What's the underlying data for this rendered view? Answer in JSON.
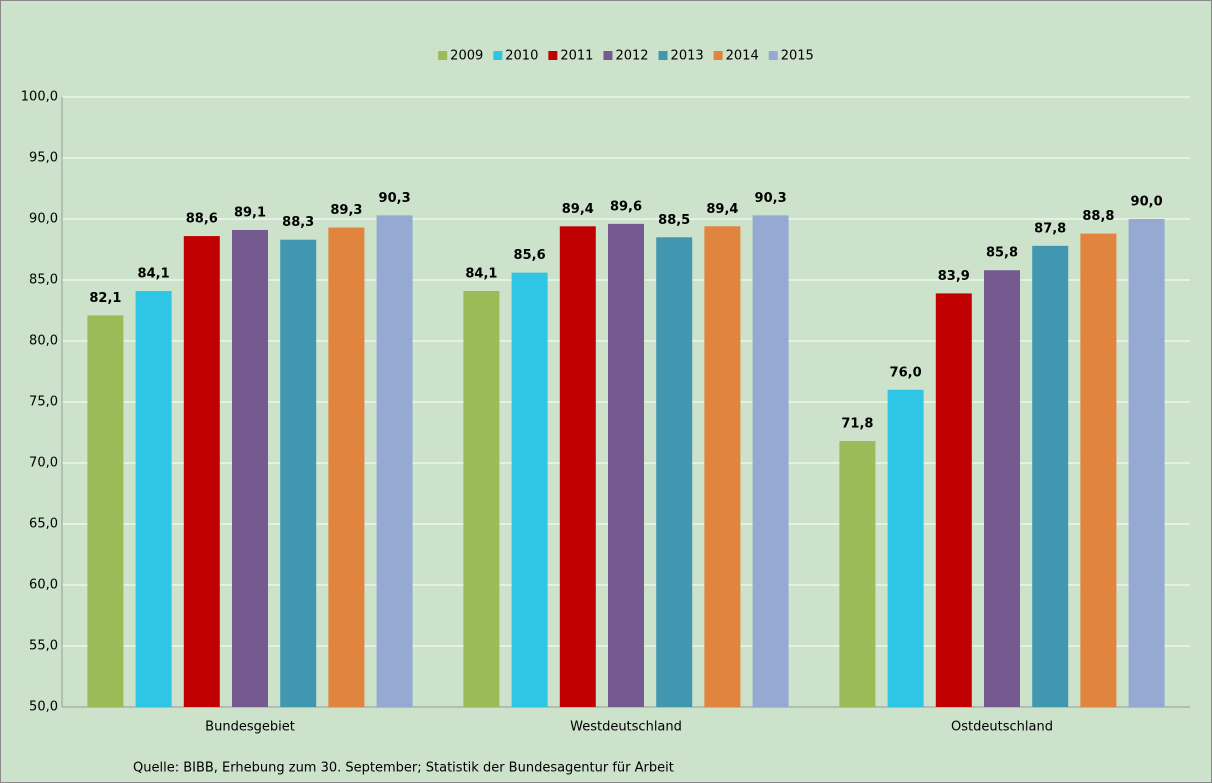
{
  "chart_data": {
    "type": "bar",
    "categories": [
      "Bundesgebiet",
      "Westdeutschland",
      "Ostdeutschland"
    ],
    "series": [
      {
        "name": "2009",
        "color": "#9bbb59",
        "values": [
          82.1,
          84.1,
          71.8
        ],
        "value_labels": [
          "82,1",
          "84,1",
          "71,8"
        ]
      },
      {
        "name": "2010",
        "color": "#2ec6e4",
        "values": [
          84.1,
          85.6,
          76.0
        ],
        "value_labels": [
          "84,1",
          "85,6",
          "76,0"
        ]
      },
      {
        "name": "2011",
        "color": "#c00000",
        "values": [
          88.6,
          89.4,
          83.9
        ],
        "value_labels": [
          "88,6",
          "89,4",
          "83,9"
        ]
      },
      {
        "name": "2012",
        "color": "#745a8f",
        "values": [
          89.1,
          89.6,
          85.8
        ],
        "value_labels": [
          "89,1",
          "89,6",
          "85,8"
        ]
      },
      {
        "name": "2013",
        "color": "#4197b0",
        "values": [
          88.3,
          88.5,
          87.8
        ],
        "value_labels": [
          "88,3",
          "88,5",
          "87,8"
        ]
      },
      {
        "name": "2014",
        "color": "#e0843e",
        "values": [
          89.3,
          89.4,
          88.8
        ],
        "value_labels": [
          "89,3",
          "89,4",
          "88,8"
        ]
      },
      {
        "name": "2015",
        "color": "#95a9d3",
        "values": [
          90.3,
          90.3,
          90.0
        ],
        "value_labels": [
          "90,3",
          "90,3",
          "90,0"
        ]
      }
    ],
    "ylim": [
      50,
      100
    ],
    "yticks": [
      {
        "value": 50,
        "label": "50,0"
      },
      {
        "value": 55,
        "label": "55,0"
      },
      {
        "value": 60,
        "label": "60,0"
      },
      {
        "value": 65,
        "label": "65,0"
      },
      {
        "value": 70,
        "label": "70,0"
      },
      {
        "value": 75,
        "label": "75,0"
      },
      {
        "value": 80,
        "label": "80,0"
      },
      {
        "value": 85,
        "label": "85,0"
      },
      {
        "value": 90,
        "label": "90,0"
      },
      {
        "value": 95,
        "label": "95,0"
      },
      {
        "value": 100,
        "label": "100,0"
      }
    ],
    "grid": true,
    "legend": "top",
    "source": "Quelle: BIBB, Erhebung zum 30. September; Statistik der Bundesagentur für Arbeit"
  }
}
